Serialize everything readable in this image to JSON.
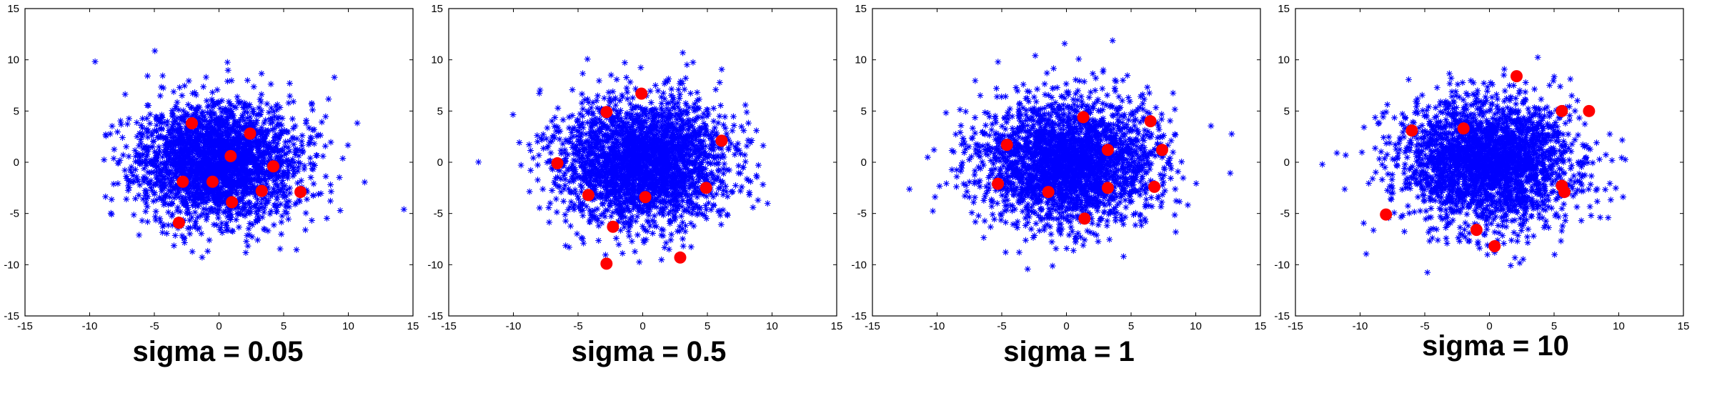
{
  "colors": {
    "samples": "#0000ff",
    "centers": "#ff0000",
    "axes": "#000000"
  },
  "chart_data": [
    {
      "type": "scatter",
      "title": "sigma = 0.05",
      "xlim": [
        -15,
        15
      ],
      "ylim": [
        -15,
        15
      ],
      "xticks": [
        "-15",
        "-10",
        "-5",
        "0",
        "5",
        "10",
        "15"
      ],
      "yticks": [
        "15",
        "10",
        "5",
        "0",
        "-5",
        "-10",
        "-15"
      ],
      "grid": false,
      "series": [
        {
          "marker": "star",
          "color": "#0000ff",
          "cloud": {
            "center": [
              0,
              0
            ],
            "sd": [
              3.1,
              2.9
            ],
            "count": 2600,
            "seed": 11
          }
        },
        {
          "marker": "circle",
          "color": "#ff0000",
          "points": [
            [
              -2.1,
              3.8
            ],
            [
              2.4,
              2.8
            ],
            [
              0.9,
              0.6
            ],
            [
              4.2,
              -0.4
            ],
            [
              -2.8,
              -1.9
            ],
            [
              -0.5,
              -1.9
            ],
            [
              3.3,
              -2.8
            ],
            [
              6.3,
              -2.9
            ],
            [
              1.0,
              -3.9
            ],
            [
              -3.1,
              -5.9
            ]
          ]
        }
      ]
    },
    {
      "type": "scatter",
      "title": "sigma = 0.5",
      "xlim": [
        -15,
        15
      ],
      "ylim": [
        -15,
        15
      ],
      "xticks": [
        "-15",
        "-10",
        "-5",
        "0",
        "5",
        "10",
        "15"
      ],
      "yticks": [
        "15",
        "10",
        "5",
        "0",
        "-5",
        "-10",
        "-15"
      ],
      "grid": false,
      "series": [
        {
          "marker": "star",
          "color": "#0000ff",
          "cloud": {
            "center": [
              0,
              0
            ],
            "sd": [
              3.2,
              3.0
            ],
            "count": 2600,
            "seed": 23
          }
        },
        {
          "marker": "circle",
          "color": "#ff0000",
          "points": [
            [
              -2.8,
              4.9
            ],
            [
              -0.1,
              6.7
            ],
            [
              6.1,
              2.1
            ],
            [
              -6.6,
              -0.1
            ],
            [
              -4.2,
              -3.2
            ],
            [
              0.2,
              -3.4
            ],
            [
              4.9,
              -2.5
            ],
            [
              -2.3,
              -6.3
            ],
            [
              -2.8,
              -9.9
            ],
            [
              2.9,
              -9.3
            ]
          ]
        }
      ]
    },
    {
      "type": "scatter",
      "title": "sigma = 1",
      "xlim": [
        -15,
        15
      ],
      "ylim": [
        -15,
        15
      ],
      "xticks": [
        "-15",
        "-10",
        "-5",
        "0",
        "5",
        "10",
        "15"
      ],
      "yticks": [
        "15",
        "10",
        "5",
        "0",
        "-5",
        "-10",
        "-15"
      ],
      "grid": false,
      "series": [
        {
          "marker": "star",
          "color": "#0000ff",
          "cloud": {
            "center": [
              0,
              0
            ],
            "sd": [
              3.3,
              3.0
            ],
            "count": 2600,
            "seed": 37
          }
        },
        {
          "marker": "circle",
          "color": "#ff0000",
          "points": [
            [
              1.3,
              4.4
            ],
            [
              6.5,
              4.0
            ],
            [
              -4.6,
              1.7
            ],
            [
              3.2,
              1.2
            ],
            [
              7.4,
              1.2
            ],
            [
              -5.3,
              -2.1
            ],
            [
              -1.4,
              -2.9
            ],
            [
              3.2,
              -2.5
            ],
            [
              6.8,
              -2.4
            ],
            [
              1.4,
              -5.5
            ]
          ]
        }
      ]
    },
    {
      "type": "scatter",
      "title": "sigma = 10",
      "xlim": [
        -15,
        15
      ],
      "ylim": [
        -15,
        15
      ],
      "xticks": [
        "-15",
        "-10",
        "-5",
        "0",
        "5",
        "10",
        "15"
      ],
      "yticks": [
        "15",
        "10",
        "5",
        "0",
        "-5",
        "-10",
        "-15"
      ],
      "grid": false,
      "series": [
        {
          "marker": "star",
          "color": "#0000ff",
          "cloud": {
            "center": [
              0,
              0
            ],
            "sd": [
              3.4,
              3.1
            ],
            "count": 2600,
            "seed": 53
          }
        },
        {
          "marker": "circle",
          "color": "#ff0000",
          "points": [
            [
              2.1,
              8.4
            ],
            [
              5.6,
              5.0
            ],
            [
              7.7,
              5.0
            ],
            [
              -6.0,
              3.1
            ],
            [
              -2.0,
              3.3
            ],
            [
              5.6,
              -2.3
            ],
            [
              5.8,
              -2.9
            ],
            [
              -8.0,
              -5.1
            ],
            [
              -1.0,
              -6.6
            ],
            [
              0.4,
              -8.2
            ]
          ]
        }
      ]
    }
  ]
}
